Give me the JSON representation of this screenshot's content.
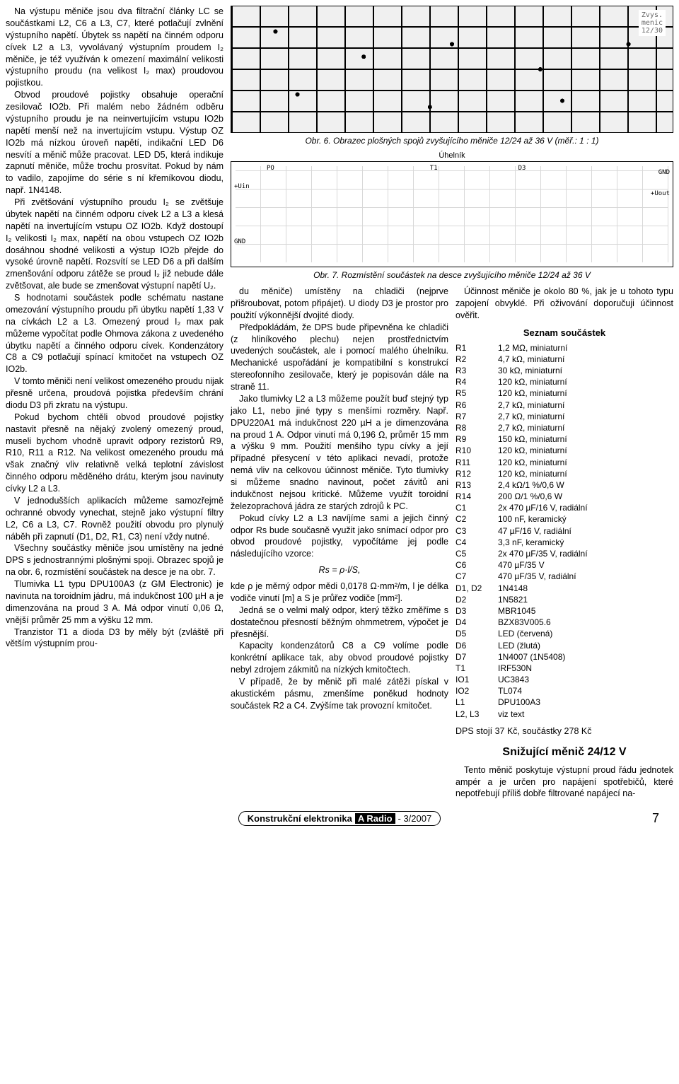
{
  "leftColumn": {
    "paragraphs": [
      "Na výstupu měniče jsou dva filtrační články LC se součástkami L2, C6 a L3, C7, které potlačují zvlnění výstupního napětí. Úbytek ss napětí na činném odporu cívek L2 a L3, vyvolávaný výstupním proudem I₂ měniče, je též využíván k omezení maximální velikosti výstupního proudu (na velikost I₂ max) proudovou pojistkou.",
      "Obvod proudové pojistky obsahuje operační zesilovač IO2b. Při malém nebo žádném odběru výstupního proudu je na neinvertujícím vstupu IO2b napětí menší než na invertujícím vstupu. Výstup OZ IO2b má nízkou úroveň napětí, indikační LED D6 nesvítí a měnič může pracovat. LED D5, která indikuje zapnutí měniče, může trochu prosvítat. Pokud by nám to vadilo, zapojíme do série s ní křemíkovou diodu, např. 1N4148.",
      "Při zvětšování výstupního proudu I₂ se zvětšuje úbytek napětí na činném odporu cívek L2 a L3 a klesá napětí na invertujícím vstupu OZ IO2b. Když dostoupí I₂ velikosti I₂ max, napětí na obou vstupech OZ IO2b dosáhnou shodné velikosti a výstup IO2b přejde do vysoké úrovně napětí. Rozsvítí se LED D6 a při dalším zmenšování odporu zátěže se proud I₂ již nebude dále zvětšovat, ale bude se zmenšovat výstupní napětí U₂.",
      "S hodnotami součástek podle schématu nastane omezování výstupního proudu při úbytku napětí 1,33 V na cívkách L2 a L3. Omezený proud I₂ max pak můžeme vypočítat podle Ohmova zákona z uvedeného úbytku napětí a činného odporu cívek. Kondenzátory C8 a C9 potlačují spínací kmitočet na vstupech OZ IO2b.",
      "V tomto měniči není velikost omezeného proudu nijak přesně určena, proudová pojistka především chrání diodu D3 při zkratu na výstupu.",
      "Pokud bychom chtěli obvod proudové pojistky nastavit přesně na nějaký zvolený omezený proud, museli bychom vhodně upravit odpory rezistorů R9, R10, R11 a R12. Na velikost omezeného proudu má však značný vliv relativně velká teplotní závislost činného odporu měděného drátu, kterým jsou navinuty cívky L2 a L3.",
      "V jednodušších aplikacích můžeme samozřejmě ochranné obvody vynechat, stejně jako výstupní filtry L2, C6 a L3, C7. Rovněž použití obvodu pro plynulý náběh při zapnutí (D1, D2, R1, C3) není vždy nutné.",
      "Všechny součástky měniče jsou umístěny na jedné DPS s jednostrannými plošnými spoji. Obrazec spojů je na obr. 6, rozmístění součástek na desce je na obr. 7.",
      "Tlumivka L1 typu DPU100A3 (z GM Electronic) je navinuta na toroidním jádru, má indukčnost 100 µH a je dimenzována na proud 3 A. Má odpor vinutí 0,06 Ω, vnější průměr 25 mm a výšku 12 mm.",
      "Tranzistor T1 a dioda D3 by měly být (zvláště při větším výstupním prou-"
    ]
  },
  "figures": {
    "fig6": {
      "pcbLabel": "Zvys.\nmenic\n12/30",
      "caption": "Obr. 6. Obrazec plošných spojů zvyšujícího měniče 12/24 až 36 V (měř.: 1 : 1)"
    },
    "fig7": {
      "uhelnik": "Úhelník",
      "labels": {
        "uin": "+Uin",
        "gnd1": "GND",
        "po": "PO",
        "t1": "T1",
        "d3": "D3",
        "gnd2": "GND",
        "uout": "+Uout"
      },
      "caption": "Obr. 7. Rozmístění součástek na desce zvyšujícího měniče 12/24 až 36 V"
    }
  },
  "midColumn": {
    "paragraphs": [
      "du měniče) umístěny na chladiči (nejprve přišroubovat, potom připájet). U diody D3 je prostor pro použití výkonnější dvojité diody.",
      "Předpokládám, že DPS bude připevněna ke chladiči (z hliníkového plechu) nejen prostřednictvím uvedených součástek, ale i pomocí malého úhelníku. Mechanické uspořádání je kompatibilní s konstrukcí stereofonního zesilovače, který je popisován dále na straně 11.",
      "Jako tlumivky L2 a L3 můžeme použít buď stejný typ jako L1, nebo jiné typy s menšími rozměry. Např. DPU220A1 má indukčnost 220 µH a je dimenzována na proud 1 A. Odpor vinutí má 0,196 Ω, průměr 15 mm a výšku 9 mm. Použití menšího typu cívky a její případné přesycení v této aplikaci nevadí, protože nemá vliv na celkovou účinnost měniče. Tyto tlumivky si můžeme snadno navinout, počet závitů ani indukčnost nejsou kritické. Můžeme využít toroidní železoprachová jádra ze starých zdrojů k PC.",
      "Pokud cívky L2 a L3 navíjíme sami a jejich činný odpor Rs bude současně využit jako snímací odpor pro obvod proudové pojistky, vypočítáme jej podle následujícího vzorce:"
    ],
    "formula": "Rs = ρ·l/S,",
    "paragraphs2": [
      "kde ρ je měrný odpor mědi 0,0178 Ω·mm²/m, l je délka vodiče vinutí [m] a S je průřez vodiče [mm²].",
      "Jedná se o velmi malý odpor, který těžko změříme s dostatečnou přesností běžným ohmmetrem, výpočet je přesnější.",
      "Kapacity kondenzátorů C8 a C9 volíme podle konkrétní aplikace tak, aby obvod proudové pojistky nebyl zdrojem zákmitů na nízkých kmitočtech.",
      "V případě, že by měnič při malé zátěži pískal v akustickém pásmu, zmenšíme poněkud hodnoty součástek R2 a C4. Zvýšíme tak provozní kmitočet."
    ]
  },
  "rightColumn": {
    "intro": "Účinnost měniče je okolo 80 %, jak je u tohoto typu zapojení obvyklé. Při oživování doporučuji účinnost ověřit.",
    "partsHeading": "Seznam součástek",
    "parts": [
      {
        "ref": "R1",
        "val": "1,2 MΩ, miniaturní"
      },
      {
        "ref": "R2",
        "val": "4,7 kΩ, miniaturní"
      },
      {
        "ref": "R3",
        "val": "30 kΩ, miniaturní"
      },
      {
        "ref": "R4",
        "val": "120 kΩ, miniaturní"
      },
      {
        "ref": "R5",
        "val": "120 kΩ, miniaturní"
      },
      {
        "ref": "R6",
        "val": "2,7 kΩ, miniaturní"
      },
      {
        "ref": "R7",
        "val": "2,7 kΩ, miniaturní"
      },
      {
        "ref": "R8",
        "val": "2,7 kΩ, miniaturní"
      },
      {
        "ref": "R9",
        "val": "150 kΩ, miniaturní"
      },
      {
        "ref": "R10",
        "val": "120 kΩ, miniaturní"
      },
      {
        "ref": "R11",
        "val": "120 kΩ, miniaturní"
      },
      {
        "ref": "R12",
        "val": "120 kΩ, miniaturní"
      },
      {
        "ref": "R13",
        "val": "2,4 kΩ/1 %/0,6 W"
      },
      {
        "ref": "R14",
        "val": "200 Ω/1 %/0,6 W"
      },
      {
        "ref": "C1",
        "val": "2x 470 µF/16 V, radiální"
      },
      {
        "ref": "C2",
        "val": "100 nF, keramický"
      },
      {
        "ref": "C3",
        "val": "47 µF/16 V, radiální"
      },
      {
        "ref": "C4",
        "val": "3,3 nF, keramický"
      },
      {
        "ref": "C5",
        "val": "2x 470 µF/35 V, radiální"
      },
      {
        "ref": "C6",
        "val": "470 µF/35 V"
      },
      {
        "ref": "C7",
        "val": "470 µF/35 V, radiální"
      },
      {
        "ref": "D1, D2",
        "val": "1N4148"
      },
      {
        "ref": "D2",
        "val": "1N5821"
      },
      {
        "ref": "D3",
        "val": "MBR1045"
      },
      {
        "ref": "D4",
        "val": "BZX83V005.6"
      },
      {
        "ref": "D5",
        "val": "LED (červená)"
      },
      {
        "ref": "D6",
        "val": "LED (žlutá)"
      },
      {
        "ref": "D7",
        "val": "1N4007 (1N5408)"
      },
      {
        "ref": "T1",
        "val": "IRF530N"
      },
      {
        "ref": "IO1",
        "val": "UC3843"
      },
      {
        "ref": "IO2",
        "val": "TL074"
      },
      {
        "ref": "L1",
        "val": "DPU100A3"
      },
      {
        "ref": "L2, L3",
        "val": "viz text"
      }
    ],
    "price": "DPS stojí 37 Kč, součástky 278 Kč",
    "sectionTitle": "Snižující měnič 24/12 V",
    "sectionText": "Tento měnič poskytuje výstupní proud řádu jednotek ampér a je určen pro napájení spotřebičů, které nepotřebují příliš dobře filtrované napájecí na-"
  },
  "footer": {
    "part1": "Konstrukční elektronika",
    "part2": "A Radio",
    "part3": "- 3/2007",
    "pageNum": "7"
  }
}
